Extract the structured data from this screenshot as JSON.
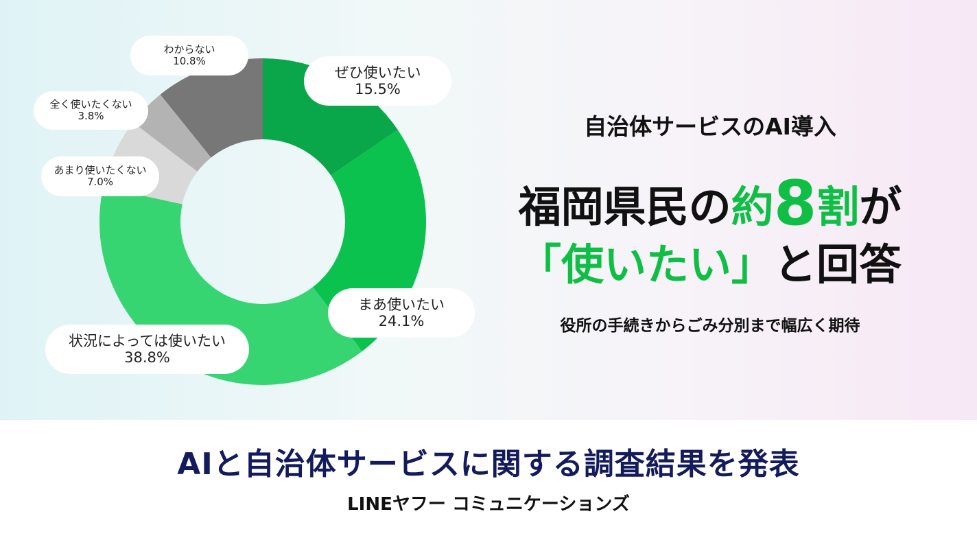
{
  "chart_data": {
    "type": "donut",
    "categories": [
      "ぜひ使いたい",
      "まあ使いたい",
      "状況によっては使いたい",
      "あまり使いたくない",
      "全く使いたくない",
      "わからない"
    ],
    "values": [
      15.5,
      24.1,
      38.8,
      7.0,
      3.8,
      10.8
    ],
    "labels": [
      "15.5%",
      "24.1%",
      "38.8%",
      "7.0%",
      "3.8%",
      "10.8%"
    ],
    "colors": [
      "#0aa64a",
      "#0cc24f",
      "#36d572",
      "#d9d9d9",
      "#b3b3b3",
      "#777777"
    ]
  },
  "headline": {
    "subtitle": "自治体サービスのAI導入",
    "main1_part1": "福岡県民の",
    "main1_highlight_pre": "約",
    "main1_number": "8",
    "main1_highlight_post": "割",
    "main1_part2": "が",
    "main2_highlight": "「使いたい」",
    "main2_rest": "と回答",
    "description": "役所の手続きからごみ分別まで幅広く期待"
  },
  "footer": {
    "title": "AIと自治体サービスに関する調査結果を発表",
    "company": "LINEヤフー コミュニケーションズ"
  },
  "colors": {
    "accent_green": "#0fbf45",
    "title_navy": "#141b5c"
  }
}
